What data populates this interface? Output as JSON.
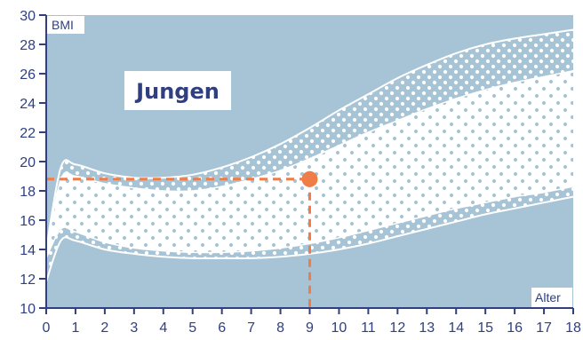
{
  "chart_data": {
    "type": "area",
    "title": "Jungen",
    "xlabel": "Alter",
    "ylabel": "BMI",
    "xlim": [
      0,
      18
    ],
    "ylim": [
      10,
      30
    ],
    "x_ticks": [
      0,
      1,
      2,
      3,
      4,
      5,
      6,
      7,
      8,
      9,
      10,
      11,
      12,
      13,
      14,
      15,
      16,
      17,
      18
    ],
    "y_ticks": [
      10,
      12,
      14,
      16,
      18,
      20,
      22,
      24,
      26,
      28,
      30
    ],
    "x": [
      0,
      0.5,
      1,
      2,
      3,
      4,
      5,
      6,
      7,
      8,
      9,
      10,
      11,
      12,
      13,
      14,
      15,
      16,
      17,
      18
    ],
    "bands": {
      "outer_upper": [
        14.0,
        19.6,
        19.8,
        19.2,
        18.9,
        18.9,
        19.1,
        19.6,
        20.3,
        21.2,
        22.3,
        23.5,
        24.6,
        25.7,
        26.6,
        27.4,
        28.0,
        28.4,
        28.7,
        29.0
      ],
      "inner_upper": [
        13.8,
        18.8,
        19.0,
        18.5,
        18.2,
        18.0,
        18.0,
        18.3,
        18.8,
        19.4,
        20.2,
        21.1,
        22.0,
        22.8,
        23.6,
        24.3,
        24.9,
        25.4,
        25.8,
        26.2
      ],
      "inner_lower": [
        13.4,
        15.4,
        15.2,
        14.5,
        14.1,
        13.9,
        13.8,
        13.8,
        13.9,
        14.1,
        14.4,
        14.8,
        15.3,
        15.8,
        16.3,
        16.8,
        17.2,
        17.6,
        17.9,
        18.3
      ],
      "outer_lower": [
        11.8,
        14.6,
        14.6,
        14.0,
        13.7,
        13.5,
        13.4,
        13.4,
        13.4,
        13.5,
        13.7,
        14.0,
        14.4,
        14.9,
        15.4,
        15.9,
        16.4,
        16.8,
        17.2,
        17.6
      ]
    },
    "marker": {
      "x": 9,
      "y": 18.8
    },
    "grid": false,
    "colors": {
      "background": "#a7c4d6",
      "band_fill": "#ffffff",
      "dot": "#a7c4d6",
      "axis": "#2f3f80",
      "marker": "#ee7d48"
    }
  }
}
